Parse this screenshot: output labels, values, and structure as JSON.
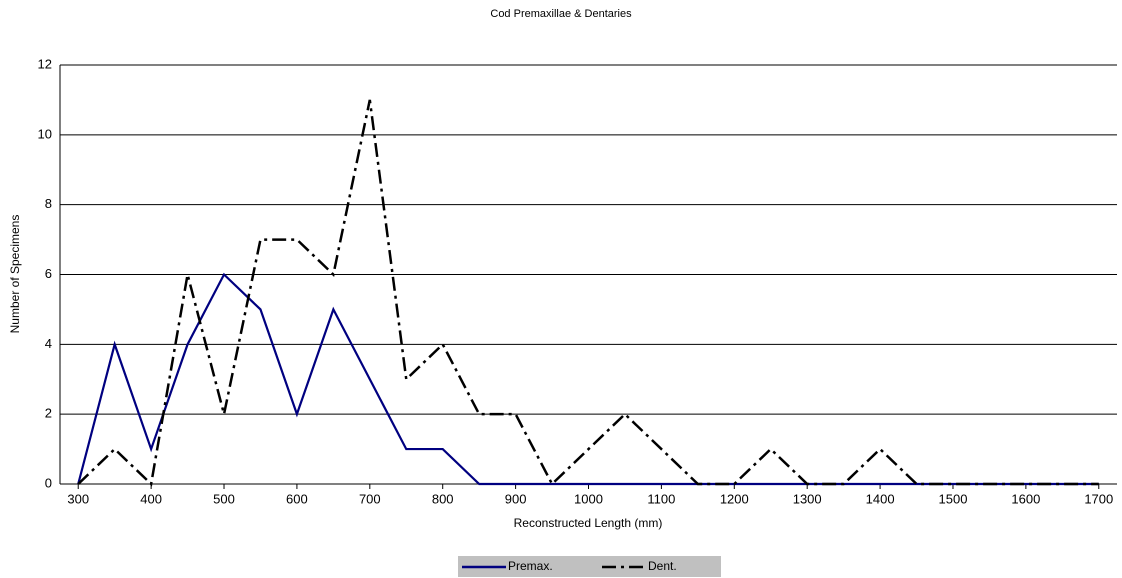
{
  "chart_data": {
    "type": "line",
    "title": "Cod Premaxillae & Dentaries",
    "x_label": "Reconstructed Length (mm)",
    "y_label": "Number of Specimens",
    "x": [
      300,
      350,
      400,
      450,
      500,
      550,
      600,
      650,
      700,
      750,
      800,
      850,
      900,
      950,
      1000,
      1050,
      1100,
      1150,
      1200,
      1250,
      1300,
      1350,
      1400,
      1450,
      1500,
      1550,
      1600,
      1650,
      1700
    ],
    "series": [
      {
        "name": "Premax.",
        "color": "#000080",
        "dash": "solid",
        "values": [
          0,
          4,
          1,
          4,
          6,
          5,
          2,
          5,
          3,
          1,
          1,
          0,
          0,
          0,
          0,
          0,
          0,
          0,
          0,
          0,
          0,
          0,
          0,
          0,
          0,
          0,
          0,
          0,
          0
        ]
      },
      {
        "name": "Dent.",
        "color": "#000000",
        "dash": "dashdot",
        "values": [
          0,
          1,
          0,
          6,
          2,
          7,
          7,
          6,
          11,
          3,
          4,
          2,
          2,
          0,
          1,
          2,
          1,
          0,
          0,
          1,
          0,
          0,
          1,
          0,
          0,
          0,
          0,
          0,
          0
        ]
      }
    ],
    "xlim": [
      275,
      1725
    ],
    "xticks": [
      300,
      400,
      500,
      600,
      700,
      800,
      900,
      1000,
      1100,
      1200,
      1300,
      1400,
      1500,
      1600,
      1700
    ],
    "ylim": [
      0,
      12
    ],
    "yticks": [
      0,
      2,
      4,
      6,
      8,
      10,
      12
    ],
    "grid": true,
    "legend": "bottom"
  }
}
